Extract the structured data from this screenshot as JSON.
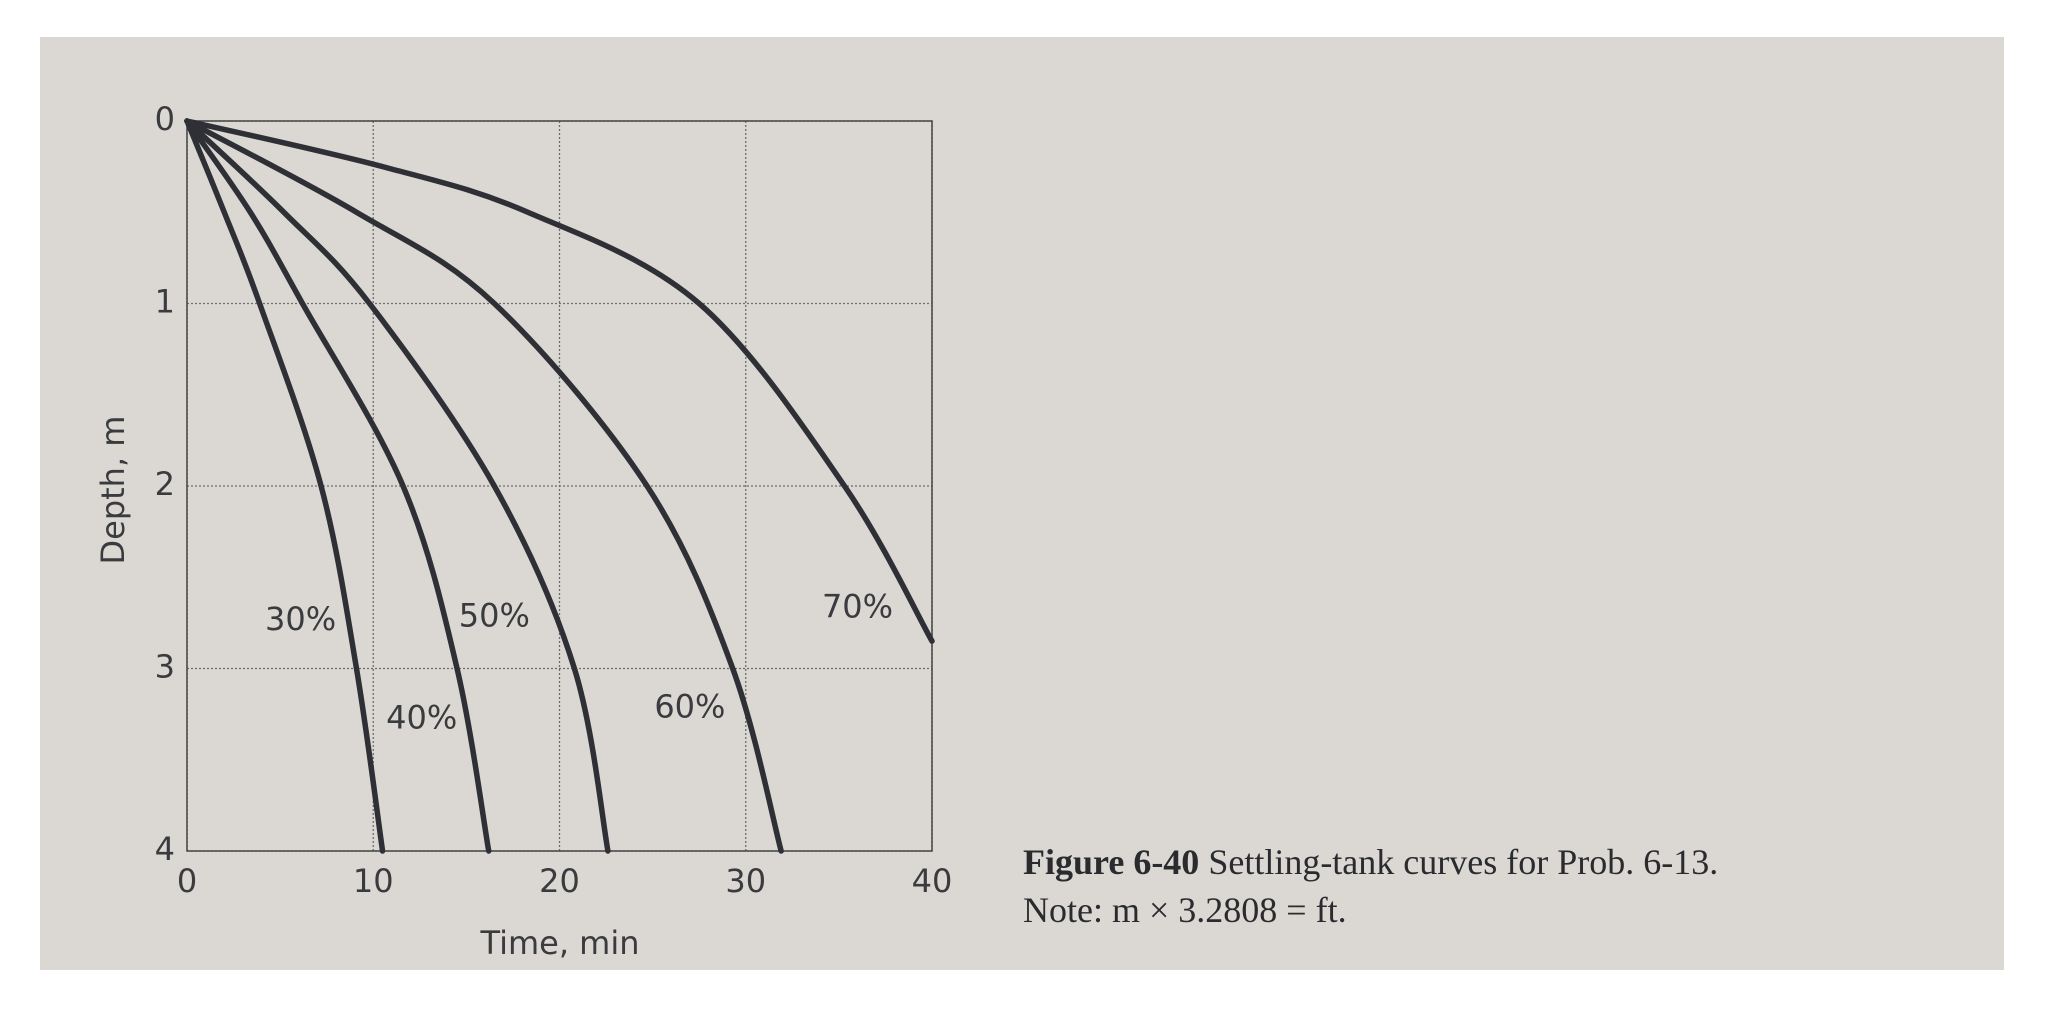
{
  "chart_data": {
    "type": "line",
    "x_label": "Time, min",
    "y_label": "Depth, m",
    "xlim": [
      0,
      40
    ],
    "ylim": [
      0,
      4
    ],
    "y_inverted": true,
    "xticks": [
      0,
      10,
      20,
      30,
      40
    ],
    "yticks": [
      0,
      1,
      2,
      3,
      4
    ],
    "grid": true,
    "series": [
      {
        "name": "30%",
        "color": "#2e3035",
        "x": [
          0,
          2.0,
          3.9,
          7.2,
          9.1,
          10.5
        ],
        "values": [
          0,
          0.5,
          1,
          2,
          3,
          4
        ]
      },
      {
        "name": "40%",
        "color": "#2e3035",
        "x": [
          0,
          3.4,
          6.2,
          11.6,
          14.5,
          16.2
        ],
        "values": [
          0,
          0.5,
          1,
          2,
          3,
          4
        ]
      },
      {
        "name": "50%",
        "color": "#2e3035",
        "x": [
          0,
          5.2,
          9.8,
          16.5,
          20.8,
          22.6
        ],
        "values": [
          0,
          0.5,
          1,
          2,
          3,
          4
        ]
      },
      {
        "name": "60%",
        "color": "#2e3035",
        "x": [
          0,
          9.1,
          16.5,
          24.7,
          29.3,
          31.9
        ],
        "values": [
          0,
          0.5,
          1,
          2,
          3,
          4
        ]
      },
      {
        "name": "70%",
        "color": "#2e3035",
        "x": [
          0,
          10.5,
          18.3,
          27.5,
          35.3,
          40
        ],
        "values": [
          0,
          0.25,
          0.5,
          1,
          2,
          2.85
        ]
      }
    ],
    "caption": {
      "label": "Figure 6-40",
      "text": "Settling-tank curves for Prob. 6-13.",
      "note": "Note: m × 3.2808 = ft."
    }
  }
}
